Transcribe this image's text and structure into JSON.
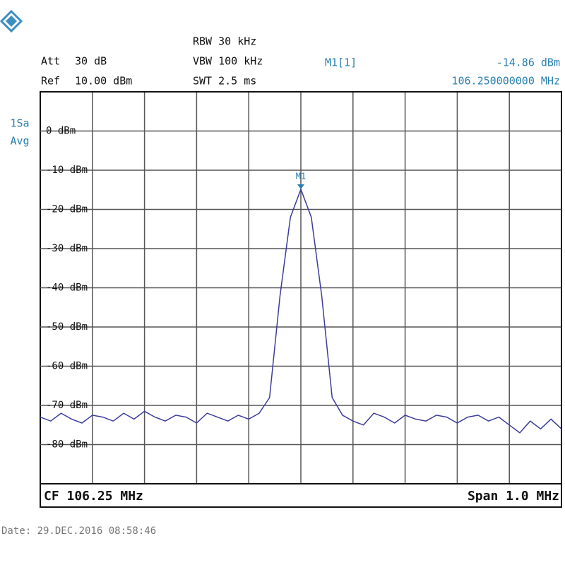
{
  "chart_data": {
    "type": "line",
    "header": {
      "att_label": "Att",
      "att_value": "30 dB",
      "ref_label": "Ref",
      "ref_value": "10.00 dBm",
      "rbw": "RBW 30 kHz",
      "vbw": "VBW 100 kHz",
      "swt": "SWT 2.5 ms",
      "trace_mode_1": "1Sa",
      "trace_mode_2": "Avg"
    },
    "footer": {
      "center": "CF 106.25 MHz",
      "span": "Span 1.0 MHz",
      "date": "Date: 29.DEC.2016  08:58:46"
    },
    "xlim": [
      105.75,
      106.75
    ],
    "ylim": [
      -90,
      10
    ],
    "yticks": [
      {
        "value": 0,
        "label": "0 dBm"
      },
      {
        "value": -10,
        "label": "-10 dBm"
      },
      {
        "value": -20,
        "label": "-20 dBm"
      },
      {
        "value": -30,
        "label": "-30 dBm"
      },
      {
        "value": -40,
        "label": "-40 dBm"
      },
      {
        "value": -50,
        "label": "-50 dBm"
      },
      {
        "value": -60,
        "label": "-60 dBm"
      },
      {
        "value": -70,
        "label": "-70 dBm"
      },
      {
        "value": -80,
        "label": "-80 dBm"
      }
    ],
    "grid": true,
    "series": [
      {
        "name": "1Sa Avg",
        "color": "#3c3c9c",
        "x": [
          105.75,
          105.77,
          105.79,
          105.81,
          105.83,
          105.85,
          105.87,
          105.89,
          105.91,
          105.93,
          105.95,
          105.97,
          105.99,
          106.01,
          106.03,
          106.05,
          106.07,
          106.09,
          106.11,
          106.13,
          106.15,
          106.17,
          106.19,
          106.21,
          106.23,
          106.25,
          106.27,
          106.29,
          106.31,
          106.33,
          106.35,
          106.37,
          106.39,
          106.41,
          106.43,
          106.45,
          106.47,
          106.49,
          106.51,
          106.53,
          106.55,
          106.57,
          106.59,
          106.61,
          106.63,
          106.65,
          106.67,
          106.69,
          106.71,
          106.73,
          106.75
        ],
        "values": [
          -73,
          -74,
          -72,
          -73.5,
          -74.5,
          -72.5,
          -73,
          -74,
          -72,
          -73.5,
          -71.5,
          -73,
          -74,
          -72.5,
          -73,
          -74.5,
          -72,
          -73,
          -74,
          -72.5,
          -73.5,
          -72,
          -68,
          -42,
          -22,
          -14.86,
          -22,
          -42,
          -68,
          -72.5,
          -74,
          -75,
          -72,
          -73,
          -74.5,
          -72.5,
          -73.5,
          -74,
          -72.5,
          -73,
          -74.5,
          -73,
          -72.5,
          -74,
          -73,
          -75,
          -77,
          -74,
          -76,
          -73.5,
          -76
        ]
      }
    ],
    "marker": {
      "name": "M1",
      "label": "M1[1]",
      "x": 106.25,
      "y": -14.86,
      "y_label": "-14.86 dBm",
      "x_label": "106.250000000 MHz"
    }
  }
}
